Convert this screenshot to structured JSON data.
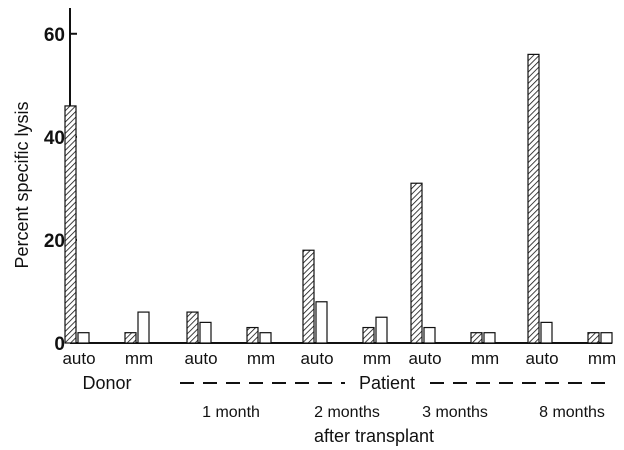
{
  "chart_data": {
    "type": "bar",
    "ylabel": "Percent specific lysis",
    "ylim": [
      0,
      65
    ],
    "yticks": [
      0,
      20,
      40,
      60
    ],
    "subgroups": [
      "auto",
      "mm"
    ],
    "bar_styles": [
      "hatched",
      "open"
    ],
    "groups": [
      {
        "name": "Donor",
        "time": "",
        "values": [
          [
            46,
            2
          ],
          [
            2,
            6
          ]
        ]
      },
      {
        "name": "Patient",
        "time": "1 month",
        "values": [
          [
            6,
            4
          ],
          [
            3,
            2
          ]
        ]
      },
      {
        "name": "Patient",
        "time": "2 months",
        "values": [
          [
            18,
            8
          ],
          [
            3,
            5
          ]
        ]
      },
      {
        "name": "Patient",
        "time": "3 months",
        "values": [
          [
            31,
            3
          ],
          [
            2,
            2
          ]
        ]
      },
      {
        "name": "Patient",
        "time": "8 months",
        "values": [
          [
            56,
            4
          ],
          [
            2,
            2
          ]
        ]
      }
    ],
    "footer": "after transplant",
    "grid": false,
    "legend": "none"
  },
  "colors": {
    "ink": "#111111",
    "background": "#ffffff"
  }
}
